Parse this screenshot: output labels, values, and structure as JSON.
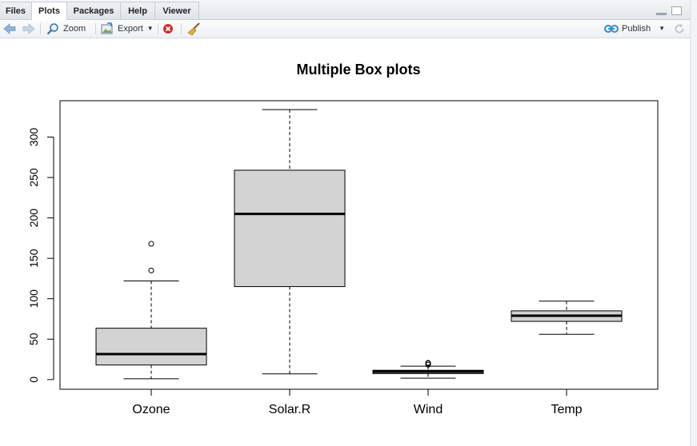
{
  "tabs": [
    {
      "label": "Files"
    },
    {
      "label": "Plots"
    },
    {
      "label": "Packages"
    },
    {
      "label": "Help"
    },
    {
      "label": "Viewer"
    }
  ],
  "toolbar": {
    "zoom_label": "Zoom",
    "export_label": "Export",
    "publish_label": "Publish"
  },
  "colors": {
    "box_fill": "#d3d3d3",
    "publish_icon": "#2f8fd1",
    "remove_icon": "#d0312d"
  },
  "chart_data": {
    "type": "box",
    "title": "Multiple Box plots",
    "categories": [
      "Ozone",
      "Solar.R",
      "Wind",
      "Temp"
    ],
    "ylim": [
      -12,
      345
    ],
    "yticks": [
      "0",
      "50",
      "100",
      "150",
      "200",
      "250",
      "300"
    ],
    "boxes": [
      {
        "name": "Ozone",
        "min": 1,
        "q1": 18,
        "median": 31.5,
        "q3": 63.5,
        "max": 122,
        "outliers": [
          135,
          168
        ]
      },
      {
        "name": "Solar.R",
        "min": 7,
        "q1": 115,
        "median": 205,
        "q3": 259,
        "max": 334,
        "outliers": []
      },
      {
        "name": "Wind",
        "min": 1.7,
        "q1": 7.4,
        "median": 9.7,
        "q3": 11.5,
        "max": 16.6,
        "outliers": [
          20.1,
          18.4,
          20.7
        ]
      },
      {
        "name": "Temp",
        "min": 56,
        "q1": 72,
        "median": 79,
        "q3": 85,
        "max": 97,
        "outliers": []
      }
    ]
  }
}
